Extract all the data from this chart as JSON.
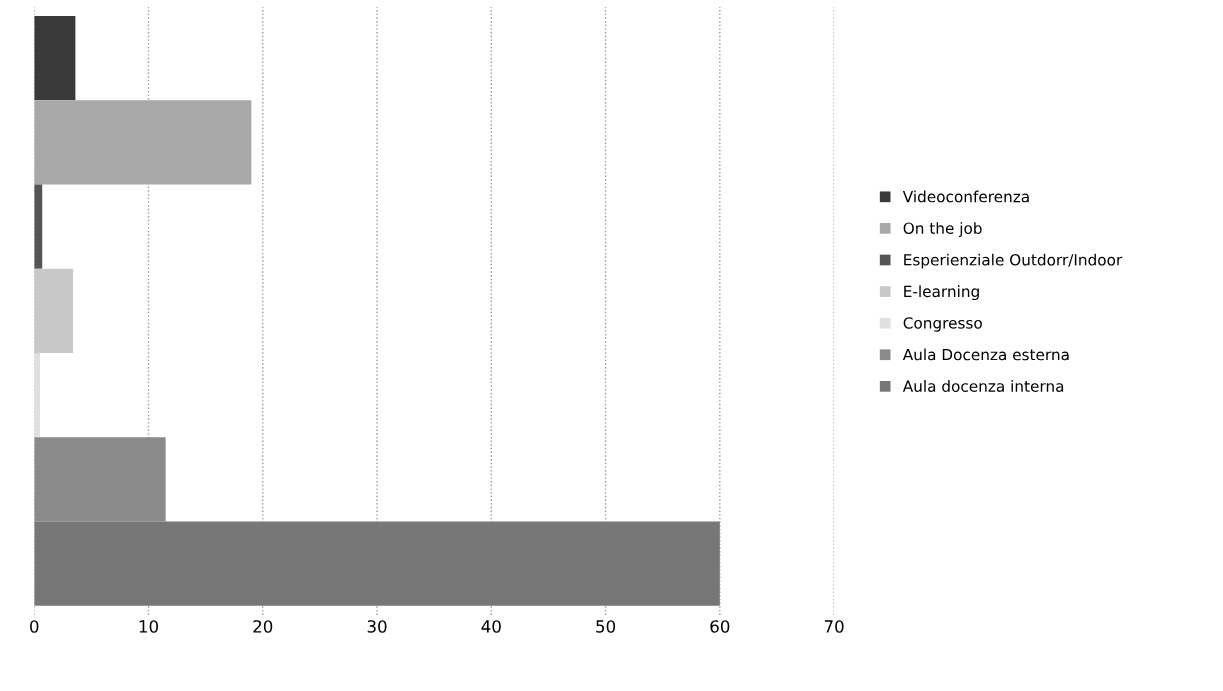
{
  "chart_data": {
    "type": "bar",
    "orientation": "horizontal",
    "categories": [
      null
    ],
    "series": [
      {
        "name": "Videoconferenza",
        "color": "#3a3a3a",
        "values": [
          3.6
        ]
      },
      {
        "name": "On the job",
        "color": "#a8a8a8",
        "values": [
          19
        ]
      },
      {
        "name": "Esperienziale Outdorr/Indoor",
        "color": "#555555",
        "values": [
          0.7
        ]
      },
      {
        "name": "E-learning",
        "color": "#c8c8c8",
        "values": [
          3.4
        ]
      },
      {
        "name": "Congresso",
        "color": "#e0e0e0",
        "values": [
          0.5
        ]
      },
      {
        "name": "Aula Docenza esterna",
        "color": "#8a8a8a",
        "values": [
          11.5
        ]
      },
      {
        "name": "Aula docenza interna",
        "color": "#777777",
        "values": [
          60
        ]
      }
    ],
    "xlim": [
      0,
      70
    ],
    "xticks": [
      0,
      10,
      20,
      30,
      40,
      50,
      60,
      70
    ],
    "grid": "x",
    "legend": "right"
  }
}
